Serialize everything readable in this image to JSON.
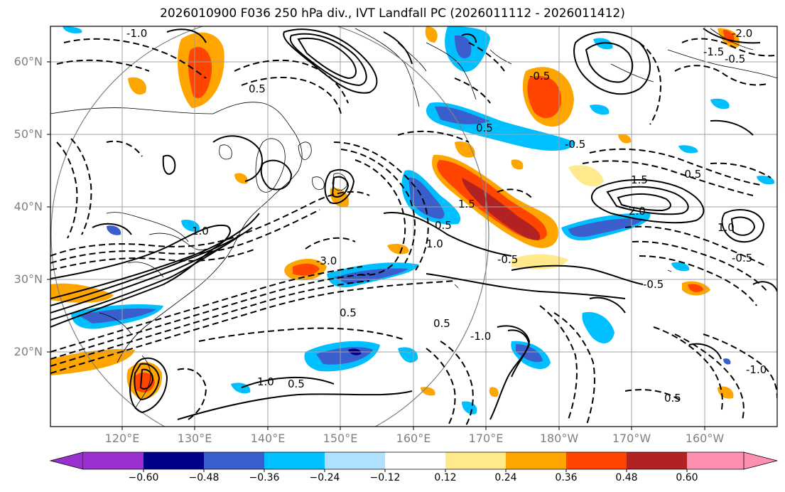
{
  "title": "2026010900 F036 250 hPa div., IVT Landfall PC (2026011112 - 2026011412)",
  "lat_labels": [
    "60°N",
    "50°N",
    "40°N",
    "30°N",
    "20°N"
  ],
  "lon_labels": [
    "120°E",
    "130°E",
    "140°E",
    "150°E",
    "160°E",
    "170°E",
    "180°W",
    "170°W",
    "160°W"
  ],
  "colorbar": {
    "ticks": [
      "−0.60",
      "−0.48",
      "−0.36",
      "−0.24",
      "−0.12",
      "0.12",
      "0.24",
      "0.36",
      "0.48",
      "0.60"
    ],
    "colors": [
      "#9b30d0",
      "#00008b",
      "#3a5fcd",
      "#00bfff",
      "#b0e0ff",
      "#ffffff",
      "#ffe98a",
      "#ffa500",
      "#ff4500",
      "#b22222",
      "#ff8fb0"
    ]
  },
  "contour_labels": [
    "-1.0",
    "0.5",
    "-0.5",
    "0.5",
    "1.5",
    "2.0",
    "1.0",
    "-0.5",
    "-1.0",
    "1.0",
    "0.5",
    "-3.0",
    "1.0",
    "-0.5",
    "0.5",
    "-0.5",
    "1.5",
    "-2.0",
    "-1.5",
    "1.0",
    "0.5",
    "0.5",
    "0.5",
    "-0.5",
    "-1.0",
    "-0.5",
    "-0.5"
  ]
}
